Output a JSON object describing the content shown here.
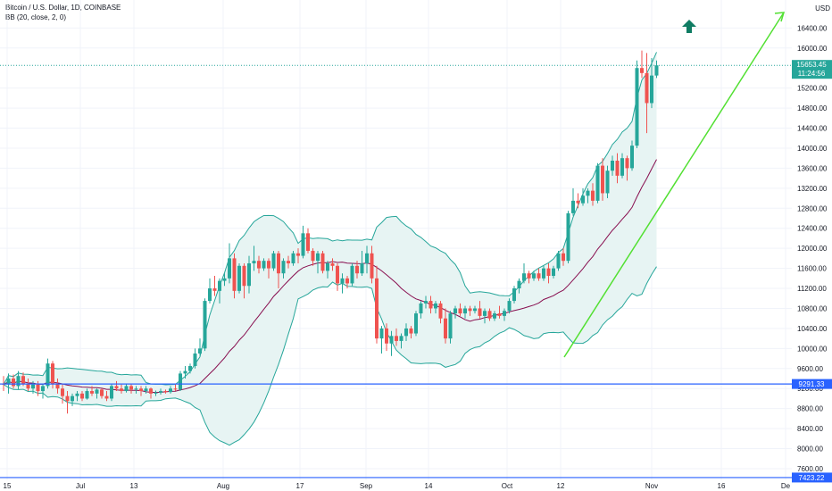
{
  "header": {
    "symbol_line": "Bitcoin / U.S. Dollar, 1D, COINBASE",
    "indicator_line": "BB (20, close, 2, 0)"
  },
  "currency_label": "USD",
  "colors": {
    "up": "#26a69a",
    "down": "#ef5350",
    "bb_band": "#26a69a",
    "bb_basis": "#880e4f",
    "bb_fill": "#e7f4f3",
    "support_line": "#2962ff",
    "trend_line": "#52e032",
    "arrow": "#0f7c63",
    "last_tag": "#26a69a",
    "grid": "#f0f3fa"
  },
  "price_tags": {
    "last_price": "15653.45",
    "countdown": "11:24:56",
    "support_1": "9291.33",
    "support_2": "7423.22"
  },
  "chart_data": {
    "type": "candlestick",
    "title": "Bitcoin / U.S. Dollar, 1D, COINBASE",
    "y_ticks": [
      7600,
      8000,
      8400,
      8800,
      9200,
      9600,
      10000,
      10400,
      10800,
      11200,
      11600,
      12000,
      12400,
      12800,
      13200,
      13600,
      14000,
      14400,
      14800,
      15200,
      16000,
      16400
    ],
    "x_ticks": [
      "15",
      "Jul",
      "13",
      "Aug",
      "17",
      "Sep",
      "14",
      "Oct",
      "12",
      "Nov",
      "16",
      "De"
    ],
    "ylim": [
      7300,
      16800
    ],
    "grid": true,
    "horizontal_levels": [
      9291.33,
      7423.22
    ],
    "candles": [
      {
        "o": 9300,
        "h": 9450,
        "l": 9150,
        "c": 9280
      },
      {
        "o": 9280,
        "h": 9500,
        "l": 9100,
        "c": 9400
      },
      {
        "o": 9400,
        "h": 9480,
        "l": 9200,
        "c": 9250
      },
      {
        "o": 9250,
        "h": 9550,
        "l": 9180,
        "c": 9450
      },
      {
        "o": 9450,
        "h": 9520,
        "l": 9250,
        "c": 9300
      },
      {
        "o": 9300,
        "h": 9400,
        "l": 9150,
        "c": 9200
      },
      {
        "o": 9200,
        "h": 9350,
        "l": 9100,
        "c": 9280
      },
      {
        "o": 9280,
        "h": 9350,
        "l": 9050,
        "c": 9150
      },
      {
        "o": 9150,
        "h": 9300,
        "l": 9000,
        "c": 9250
      },
      {
        "o": 9250,
        "h": 9800,
        "l": 9200,
        "c": 9700
      },
      {
        "o": 9700,
        "h": 9750,
        "l": 9200,
        "c": 9300
      },
      {
        "o": 9300,
        "h": 9400,
        "l": 9100,
        "c": 9200
      },
      {
        "o": 9200,
        "h": 9300,
        "l": 8900,
        "c": 9050
      },
      {
        "o": 9050,
        "h": 9150,
        "l": 8700,
        "c": 8950
      },
      {
        "o": 8950,
        "h": 9100,
        "l": 8850,
        "c": 9050
      },
      {
        "o": 9050,
        "h": 9150,
        "l": 8950,
        "c": 9100
      },
      {
        "o": 9100,
        "h": 9150,
        "l": 8950,
        "c": 9000
      },
      {
        "o": 9000,
        "h": 9200,
        "l": 8980,
        "c": 9150
      },
      {
        "o": 9150,
        "h": 9250,
        "l": 9050,
        "c": 9100
      },
      {
        "o": 9100,
        "h": 9200,
        "l": 9000,
        "c": 9180
      },
      {
        "o": 9180,
        "h": 9200,
        "l": 9000,
        "c": 9050
      },
      {
        "o": 9050,
        "h": 9150,
        "l": 8950,
        "c": 9000
      },
      {
        "o": 9000,
        "h": 9300,
        "l": 8950,
        "c": 9250
      },
      {
        "o": 9250,
        "h": 9350,
        "l": 9150,
        "c": 9200
      },
      {
        "o": 9200,
        "h": 9280,
        "l": 9100,
        "c": 9150
      },
      {
        "o": 9150,
        "h": 9300,
        "l": 9120,
        "c": 9250
      },
      {
        "o": 9250,
        "h": 9300,
        "l": 9100,
        "c": 9180
      },
      {
        "o": 9180,
        "h": 9250,
        "l": 9100,
        "c": 9200
      },
      {
        "o": 9200,
        "h": 9250,
        "l": 9050,
        "c": 9150
      },
      {
        "o": 9150,
        "h": 9250,
        "l": 9100,
        "c": 9200
      },
      {
        "o": 9200,
        "h": 9220,
        "l": 9000,
        "c": 9100
      },
      {
        "o": 9100,
        "h": 9160,
        "l": 9050,
        "c": 9120
      },
      {
        "o": 9120,
        "h": 9200,
        "l": 9080,
        "c": 9150
      },
      {
        "o": 9150,
        "h": 9180,
        "l": 9100,
        "c": 9130
      },
      {
        "o": 9130,
        "h": 9250,
        "l": 9100,
        "c": 9200
      },
      {
        "o": 9200,
        "h": 9300,
        "l": 9150,
        "c": 9180
      },
      {
        "o": 9180,
        "h": 9550,
        "l": 9150,
        "c": 9500
      },
      {
        "o": 9500,
        "h": 9650,
        "l": 9400,
        "c": 9550
      },
      {
        "o": 9550,
        "h": 9700,
        "l": 9500,
        "c": 9650
      },
      {
        "o": 9650,
        "h": 10000,
        "l": 9600,
        "c": 9900
      },
      {
        "o": 9900,
        "h": 10200,
        "l": 9850,
        "c": 10000
      },
      {
        "o": 10000,
        "h": 11000,
        "l": 9950,
        "c": 10950
      },
      {
        "o": 10950,
        "h": 11400,
        "l": 10900,
        "c": 11200
      },
      {
        "o": 11200,
        "h": 11450,
        "l": 11050,
        "c": 11150
      },
      {
        "o": 11150,
        "h": 11400,
        "l": 10900,
        "c": 11350
      },
      {
        "o": 11350,
        "h": 11500,
        "l": 11250,
        "c": 11400
      },
      {
        "o": 11400,
        "h": 12100,
        "l": 11300,
        "c": 11800
      },
      {
        "o": 11800,
        "h": 11900,
        "l": 11000,
        "c": 11150
      },
      {
        "o": 11150,
        "h": 11700,
        "l": 11100,
        "c": 11650
      },
      {
        "o": 11650,
        "h": 11700,
        "l": 11000,
        "c": 11250
      },
      {
        "o": 11250,
        "h": 11850,
        "l": 11100,
        "c": 11700
      },
      {
        "o": 11700,
        "h": 12050,
        "l": 11550,
        "c": 11750
      },
      {
        "o": 11750,
        "h": 11850,
        "l": 11500,
        "c": 11600
      },
      {
        "o": 11600,
        "h": 11800,
        "l": 11550,
        "c": 11750
      },
      {
        "o": 11750,
        "h": 11800,
        "l": 11400,
        "c": 11600
      },
      {
        "o": 11600,
        "h": 11950,
        "l": 11550,
        "c": 11900
      },
      {
        "o": 11900,
        "h": 11950,
        "l": 11200,
        "c": 11500
      },
      {
        "o": 11500,
        "h": 11800,
        "l": 11400,
        "c": 11750
      },
      {
        "o": 11750,
        "h": 11850,
        "l": 11600,
        "c": 11700
      },
      {
        "o": 11700,
        "h": 11950,
        "l": 11650,
        "c": 11900
      },
      {
        "o": 11900,
        "h": 12000,
        "l": 11700,
        "c": 11850
      },
      {
        "o": 11850,
        "h": 12450,
        "l": 11800,
        "c": 12300
      },
      {
        "o": 12300,
        "h": 12400,
        "l": 11900,
        "c": 11950
      },
      {
        "o": 11950,
        "h": 12000,
        "l": 11650,
        "c": 11750
      },
      {
        "o": 11750,
        "h": 11950,
        "l": 11500,
        "c": 11900
      },
      {
        "o": 11900,
        "h": 11950,
        "l": 11500,
        "c": 11550
      },
      {
        "o": 11550,
        "h": 11750,
        "l": 11400,
        "c": 11700
      },
      {
        "o": 11700,
        "h": 11800,
        "l": 11550,
        "c": 11650
      },
      {
        "o": 11650,
        "h": 11700,
        "l": 11150,
        "c": 11300
      },
      {
        "o": 11300,
        "h": 11500,
        "l": 11100,
        "c": 11400
      },
      {
        "o": 11400,
        "h": 11450,
        "l": 11200,
        "c": 11300
      },
      {
        "o": 11300,
        "h": 11700,
        "l": 11250,
        "c": 11650
      },
      {
        "o": 11650,
        "h": 11750,
        "l": 11400,
        "c": 11500
      },
      {
        "o": 11500,
        "h": 11950,
        "l": 11450,
        "c": 11700
      },
      {
        "o": 11700,
        "h": 12050,
        "l": 11500,
        "c": 11900
      },
      {
        "o": 11900,
        "h": 12050,
        "l": 11300,
        "c": 11400
      },
      {
        "o": 11400,
        "h": 11650,
        "l": 10100,
        "c": 10200
      },
      {
        "o": 10200,
        "h": 10450,
        "l": 9900,
        "c": 10400
      },
      {
        "o": 10400,
        "h": 10500,
        "l": 9950,
        "c": 10100
      },
      {
        "o": 10100,
        "h": 10350,
        "l": 9850,
        "c": 10250
      },
      {
        "o": 10250,
        "h": 10400,
        "l": 10050,
        "c": 10150
      },
      {
        "o": 10150,
        "h": 10300,
        "l": 10000,
        "c": 10250
      },
      {
        "o": 10250,
        "h": 10500,
        "l": 10150,
        "c": 10400
      },
      {
        "o": 10400,
        "h": 10450,
        "l": 10200,
        "c": 10300
      },
      {
        "o": 10300,
        "h": 10750,
        "l": 10250,
        "c": 10700
      },
      {
        "o": 10700,
        "h": 10950,
        "l": 10600,
        "c": 10900
      },
      {
        "o": 10900,
        "h": 11050,
        "l": 10800,
        "c": 10950
      },
      {
        "o": 10950,
        "h": 11050,
        "l": 10700,
        "c": 10800
      },
      {
        "o": 10800,
        "h": 10950,
        "l": 10700,
        "c": 10900
      },
      {
        "o": 10900,
        "h": 10950,
        "l": 10500,
        "c": 10600
      },
      {
        "o": 10600,
        "h": 10800,
        "l": 10100,
        "c": 10200
      },
      {
        "o": 10200,
        "h": 10750,
        "l": 10100,
        "c": 10700
      },
      {
        "o": 10700,
        "h": 10850,
        "l": 10600,
        "c": 10800
      },
      {
        "o": 10800,
        "h": 10900,
        "l": 10650,
        "c": 10700
      },
      {
        "o": 10700,
        "h": 10850,
        "l": 10600,
        "c": 10800
      },
      {
        "o": 10800,
        "h": 10850,
        "l": 10650,
        "c": 10750
      },
      {
        "o": 10750,
        "h": 10850,
        "l": 10700,
        "c": 10800
      },
      {
        "o": 10800,
        "h": 10950,
        "l": 10600,
        "c": 10650
      },
      {
        "o": 10650,
        "h": 10800,
        "l": 10500,
        "c": 10750
      },
      {
        "o": 10750,
        "h": 10800,
        "l": 10550,
        "c": 10600
      },
      {
        "o": 10600,
        "h": 10750,
        "l": 10550,
        "c": 10700
      },
      {
        "o": 10700,
        "h": 10850,
        "l": 10600,
        "c": 10650
      },
      {
        "o": 10650,
        "h": 10800,
        "l": 10550,
        "c": 10750
      },
      {
        "o": 10750,
        "h": 11000,
        "l": 10700,
        "c": 10950
      },
      {
        "o": 10950,
        "h": 11250,
        "l": 10900,
        "c": 11200
      },
      {
        "o": 11200,
        "h": 11400,
        "l": 11100,
        "c": 11350
      },
      {
        "o": 11350,
        "h": 11700,
        "l": 11300,
        "c": 11500
      },
      {
        "o": 11500,
        "h": 11550,
        "l": 11300,
        "c": 11400
      },
      {
        "o": 11400,
        "h": 11550,
        "l": 11350,
        "c": 11500
      },
      {
        "o": 11500,
        "h": 11600,
        "l": 11350,
        "c": 11400
      },
      {
        "o": 11400,
        "h": 11650,
        "l": 11350,
        "c": 11600
      },
      {
        "o": 11600,
        "h": 11700,
        "l": 11300,
        "c": 11450
      },
      {
        "o": 11450,
        "h": 11650,
        "l": 11400,
        "c": 11600
      },
      {
        "o": 11600,
        "h": 11950,
        "l": 11550,
        "c": 11900
      },
      {
        "o": 11900,
        "h": 12000,
        "l": 11650,
        "c": 11750
      },
      {
        "o": 11750,
        "h": 12750,
        "l": 11700,
        "c": 12700
      },
      {
        "o": 12700,
        "h": 13200,
        "l": 12650,
        "c": 12950
      },
      {
        "o": 12950,
        "h": 13100,
        "l": 12800,
        "c": 12900
      },
      {
        "o": 12900,
        "h": 13200,
        "l": 12850,
        "c": 13050
      },
      {
        "o": 13050,
        "h": 13200,
        "l": 12900,
        "c": 13150
      },
      {
        "o": 13150,
        "h": 13300,
        "l": 12850,
        "c": 12950
      },
      {
        "o": 12950,
        "h": 13700,
        "l": 12900,
        "c": 13650
      },
      {
        "o": 13650,
        "h": 13800,
        "l": 12950,
        "c": 13100
      },
      {
        "o": 13100,
        "h": 13650,
        "l": 13000,
        "c": 13550
      },
      {
        "o": 13550,
        "h": 13850,
        "l": 13450,
        "c": 13750
      },
      {
        "o": 13750,
        "h": 13900,
        "l": 13300,
        "c": 13450
      },
      {
        "o": 13450,
        "h": 13900,
        "l": 13400,
        "c": 13800
      },
      {
        "o": 13800,
        "h": 13850,
        "l": 13350,
        "c": 13600
      },
      {
        "o": 13600,
        "h": 14150,
        "l": 13550,
        "c": 14050
      },
      {
        "o": 14050,
        "h": 15750,
        "l": 14000,
        "c": 15600
      },
      {
        "o": 15600,
        "h": 15950,
        "l": 15400,
        "c": 15500
      },
      {
        "o": 15500,
        "h": 15900,
        "l": 14300,
        "c": 14900
      },
      {
        "o": 14900,
        "h": 15800,
        "l": 14800,
        "c": 15450
      },
      {
        "o": 15450,
        "h": 15750,
        "l": 15400,
        "c": 15653.45
      }
    ]
  }
}
